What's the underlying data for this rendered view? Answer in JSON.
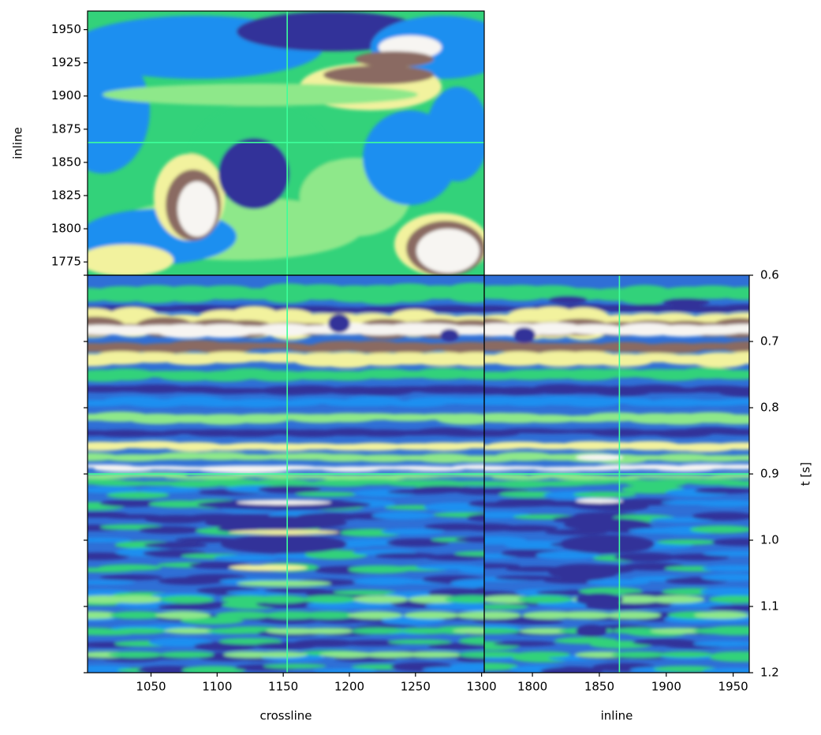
{
  "chart_data": [
    {
      "type": "heatmap",
      "colormap": "terrain",
      "ylabel": "inline",
      "xlim": [
        1002,
        1302
      ],
      "ylim": [
        1765,
        1964
      ],
      "yticks": [
        1775,
        1800,
        1825,
        1850,
        1875,
        1900,
        1925,
        1950
      ],
      "crosshair": {
        "x": 1153,
        "y": 1865,
        "color": "#3dff9b"
      }
    },
    {
      "type": "heatmap",
      "colormap": "terrain",
      "xlabel": "crossline",
      "xlim": [
        1002,
        1302
      ],
      "ylim": [
        1.2,
        0.6
      ],
      "xticks": [
        1050,
        1100,
        1150,
        1200,
        1250,
        1300
      ],
      "crosshair": {
        "x": 1153,
        "y": 0.9,
        "color": "#3dff9b"
      }
    },
    {
      "type": "heatmap",
      "colormap": "terrain",
      "xlabel": "inline",
      "ylabel": "t [s]",
      "xlim": [
        1764,
        1962
      ],
      "ylim": [
        1.2,
        0.6
      ],
      "xticks": [
        1800,
        1850,
        1900,
        1950
      ],
      "yticks": [
        0.6,
        0.7,
        0.8,
        0.9,
        {
          "value": 1,
          "label": "1.0"
        },
        1.1,
        1.2
      ],
      "crosshair": {
        "x": 1865,
        "y": 0.9,
        "color": "#3dff9b"
      }
    }
  ]
}
